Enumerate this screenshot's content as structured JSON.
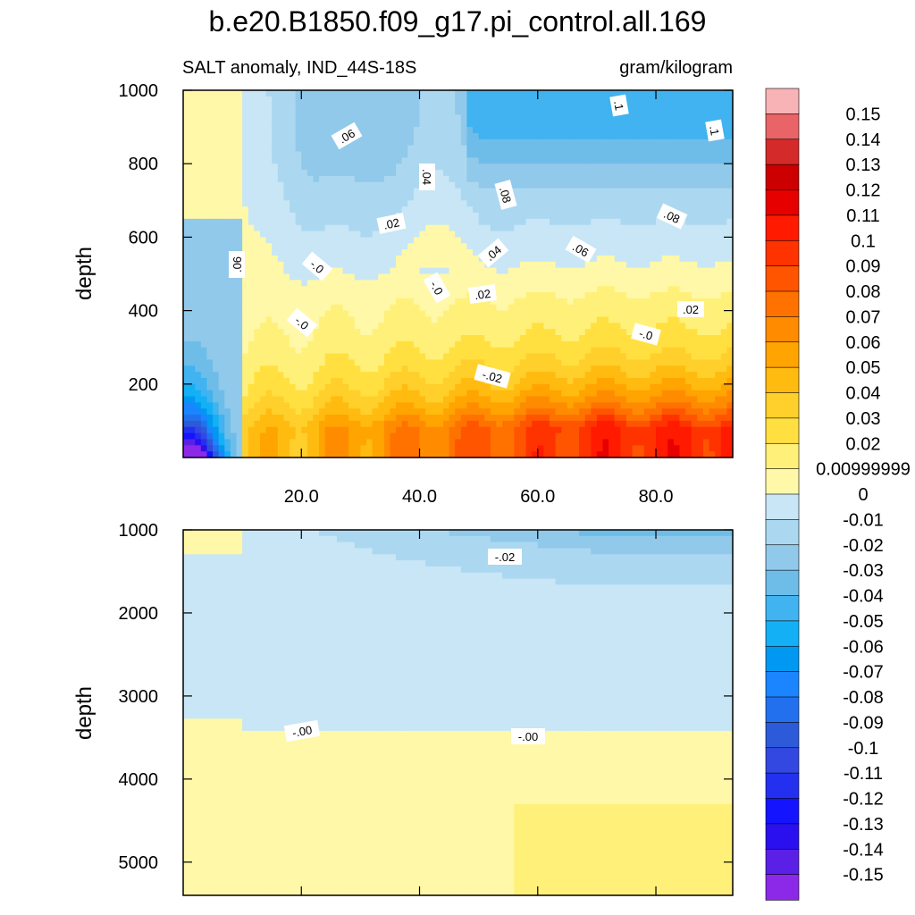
{
  "chart_data": {
    "type": "heatmap",
    "title": "b.e20.B1850.f09_g17.pi_control.all.169",
    "subtitle_left": "SALT anomaly, IND_44S-18S",
    "subtitle_right": "gram/kilogram",
    "ylabel": "depth",
    "xlim": [
      0,
      93
    ],
    "x_ticks": [
      "20.0",
      "40.0",
      "60.0",
      "80.0"
    ],
    "panels": [
      {
        "name": "upper",
        "ylim": [
          1000,
          0
        ],
        "y_ticks": [
          "200",
          "400",
          "600",
          "800",
          "1000"
        ],
        "contour_labels": [
          ".06",
          ".06",
          ".04",
          ".02",
          "-.0",
          "-.0",
          "-.0",
          ".08",
          ".04",
          ".02",
          "-.02",
          ".1",
          ".1",
          ".08",
          ".06",
          ".02",
          "-.0"
        ]
      },
      {
        "name": "lower",
        "ylim": [
          1000,
          5400
        ],
        "y_ticks": [
          "1000",
          "2000",
          "3000",
          "4000",
          "5000"
        ],
        "contour_labels": [
          "-.02",
          "-.00",
          "-.00"
        ]
      }
    ],
    "colorbar": {
      "labels": [
        "0.15",
        "0.14",
        "0.13",
        "0.12",
        "0.11",
        "0.1",
        "0.09",
        "0.08",
        "0.07",
        "0.06",
        "0.05",
        "0.04",
        "0.03",
        "0.02",
        "0.00999999",
        "0",
        "-0.01",
        "-0.02",
        "-0.03",
        "-0.04",
        "-0.05",
        "-0.06",
        "-0.07",
        "-0.08",
        "-0.09",
        "-0.1",
        "-0.11",
        "-0.12",
        "-0.13",
        "-0.14",
        "-0.15"
      ],
      "colors": [
        "#f7b3b6",
        "#e86466",
        "#d42a2a",
        "#cc0000",
        "#e60000",
        "#ff1a00",
        "#ff3300",
        "#ff5500",
        "#ff7200",
        "#ff8c00",
        "#ffa400",
        "#ffbb10",
        "#ffcf2b",
        "#ffe040",
        "#fff07a",
        "#fff8a8",
        "#c8e6f5",
        "#abd8f0",
        "#91c9eb",
        "#6ebde8",
        "#40b3f0",
        "#14b0f5",
        "#0098f0",
        "#1a85ff",
        "#2370ef",
        "#2c5ad8",
        "#3348e0",
        "#2430f0",
        "#1414ff",
        "#2a10ee",
        "#5a20e6",
        "#8c28e8"
      ]
    }
  }
}
